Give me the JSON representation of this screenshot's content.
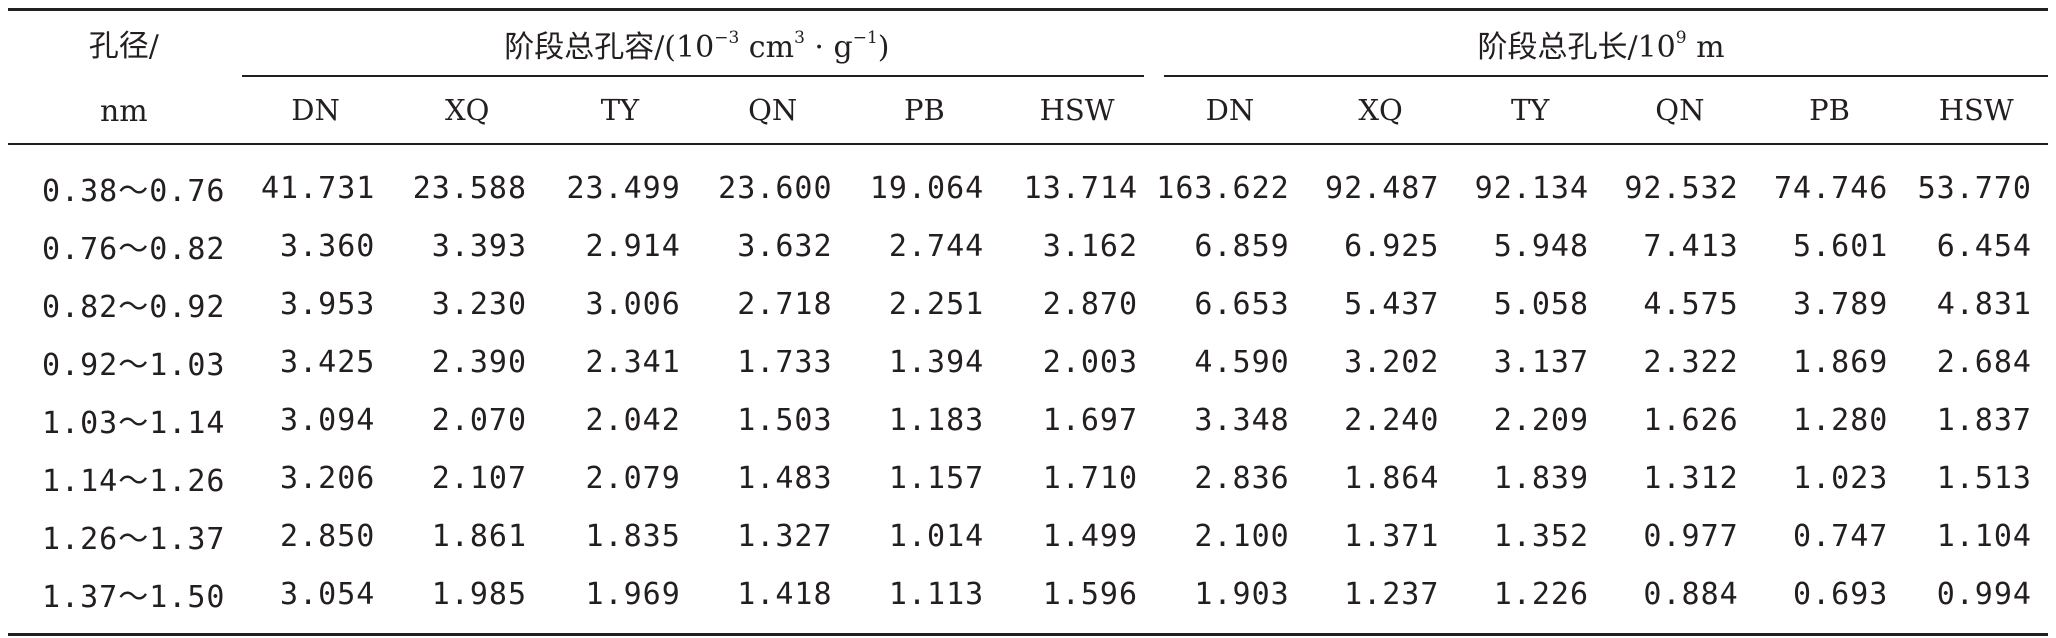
{
  "header": {
    "diameter_label_line1": "孔径/",
    "diameter_label_line2": "nm",
    "volume_group_prefix": "阶段总孔容/(10",
    "volume_group_exp1": "−3",
    "volume_group_mid": " cm",
    "volume_group_exp2": "3",
    "volume_group_mid2": " · g",
    "volume_group_exp3": "−1",
    "volume_group_suffix": ")",
    "length_group_prefix": "阶段总孔长/10",
    "length_group_exp": "9",
    "length_group_suffix": " m",
    "samples": [
      "DN",
      "XQ",
      "TY",
      "QN",
      "PB",
      "HSW"
    ]
  },
  "rows": [
    {
      "range": "0.38～0.76",
      "volume": [
        "41.731",
        "23.588",
        "23.499",
        "23.600",
        "19.064",
        "13.714"
      ],
      "length": [
        "163.622",
        "92.487",
        "92.134",
        "92.532",
        "74.746",
        "53.770"
      ]
    },
    {
      "range": "0.76～0.82",
      "volume": [
        "3.360",
        "3.393",
        "2.914",
        "3.632",
        "2.744",
        "3.162"
      ],
      "length": [
        "6.859",
        "6.925",
        "5.948",
        "7.413",
        "5.601",
        "6.454"
      ]
    },
    {
      "range": "0.82～0.92",
      "volume": [
        "3.953",
        "3.230",
        "3.006",
        "2.718",
        "2.251",
        "2.870"
      ],
      "length": [
        "6.653",
        "5.437",
        "5.058",
        "4.575",
        "3.789",
        "4.831"
      ]
    },
    {
      "range": "0.92～1.03",
      "volume": [
        "3.425",
        "2.390",
        "2.341",
        "1.733",
        "1.394",
        "2.003"
      ],
      "length": [
        "4.590",
        "3.202",
        "3.137",
        "2.322",
        "1.869",
        "2.684"
      ]
    },
    {
      "range": "1.03～1.14",
      "volume": [
        "3.094",
        "2.070",
        "2.042",
        "1.503",
        "1.183",
        "1.697"
      ],
      "length": [
        "3.348",
        "2.240",
        "2.209",
        "1.626",
        "1.280",
        "1.837"
      ]
    },
    {
      "range": "1.14～1.26",
      "volume": [
        "3.206",
        "2.107",
        "2.079",
        "1.483",
        "1.157",
        "1.710"
      ],
      "length": [
        "2.836",
        "1.864",
        "1.839",
        "1.312",
        "1.023",
        "1.513"
      ]
    },
    {
      "range": "1.26～1.37",
      "volume": [
        "2.850",
        "1.861",
        "1.835",
        "1.327",
        "1.014",
        "1.499"
      ],
      "length": [
        "2.100",
        "1.371",
        "1.352",
        "0.977",
        "0.747",
        "1.104"
      ]
    },
    {
      "range": "1.37～1.50",
      "volume": [
        "3.054",
        "1.985",
        "1.969",
        "1.418",
        "1.113",
        "1.596"
      ],
      "length": [
        "1.903",
        "1.237",
        "1.226",
        "0.884",
        "0.693",
        "0.994"
      ]
    }
  ]
}
